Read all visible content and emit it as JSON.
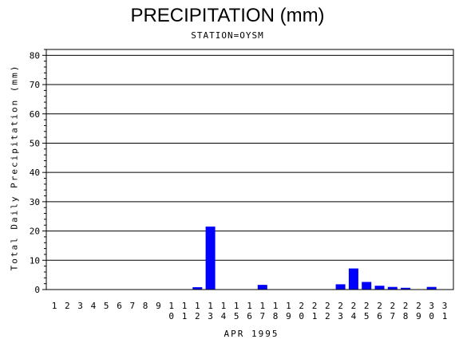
{
  "chart_data": {
    "type": "bar",
    "title": "PRECIPITATION (mm)",
    "subtitle": "STATION=OYSM",
    "ylabel": "Total Daily Precipitation (mm)",
    "xlabel": "APR 1995",
    "ylim": [
      0,
      82
    ],
    "yticks": [
      0,
      10,
      20,
      30,
      40,
      50,
      60,
      70,
      80
    ],
    "grid": true,
    "bar_color": "#0000ff",
    "categories": [
      "1",
      "2",
      "3",
      "4",
      "5",
      "6",
      "7",
      "8",
      "9",
      "10",
      "11",
      "12",
      "13",
      "14",
      "15",
      "16",
      "17",
      "18",
      "19",
      "20",
      "21",
      "22",
      "23",
      "24",
      "25",
      "26",
      "27",
      "28",
      "29",
      "30",
      "31"
    ],
    "values": [
      0,
      0,
      0,
      0,
      0,
      0,
      0,
      0,
      0,
      0,
      0,
      0.8,
      21.5,
      0,
      0,
      0,
      1.6,
      0,
      0,
      0,
      0,
      0,
      1.8,
      7.2,
      2.6,
      1.3,
      0.9,
      0.6,
      0,
      0.9,
      0
    ]
  }
}
